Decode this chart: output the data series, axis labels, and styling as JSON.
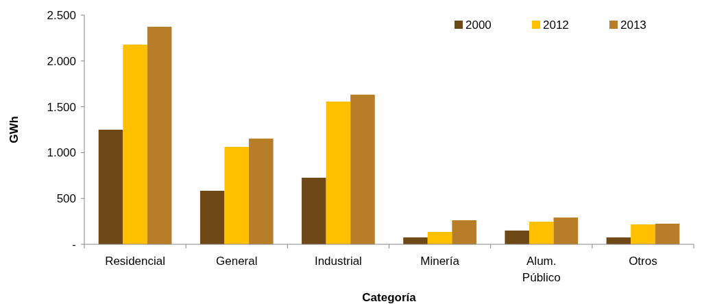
{
  "chart_data": {
    "type": "bar",
    "xlabel": "Categoría",
    "ylabel": "GWh",
    "categories": [
      "Residencial",
      "General",
      "Industrial",
      "Minería",
      "Alum. Público",
      "Otros"
    ],
    "series": [
      {
        "name": "2000",
        "color": "#6f4818",
        "values": [
          1250,
          584,
          726,
          75,
          150,
          75
        ]
      },
      {
        "name": "2012",
        "color": "#ffc000",
        "values": [
          2178,
          1063,
          1557,
          135,
          247,
          217
        ]
      },
      {
        "name": "2013",
        "color": "#b87d28",
        "values": [
          2373,
          1153,
          1632,
          262,
          292,
          225
        ]
      }
    ],
    "ylim": [
      0,
      2500
    ],
    "yticks": [
      {
        "value": 0,
        "label": "-"
      },
      {
        "value": 500,
        "label": "500"
      },
      {
        "value": 1000,
        "label": "1.000"
      },
      {
        "value": 1500,
        "label": "1.500"
      },
      {
        "value": 2000,
        "label": "2.000"
      },
      {
        "value": 2500,
        "label": "2.500"
      }
    ],
    "grid": false,
    "legend": "top right"
  }
}
